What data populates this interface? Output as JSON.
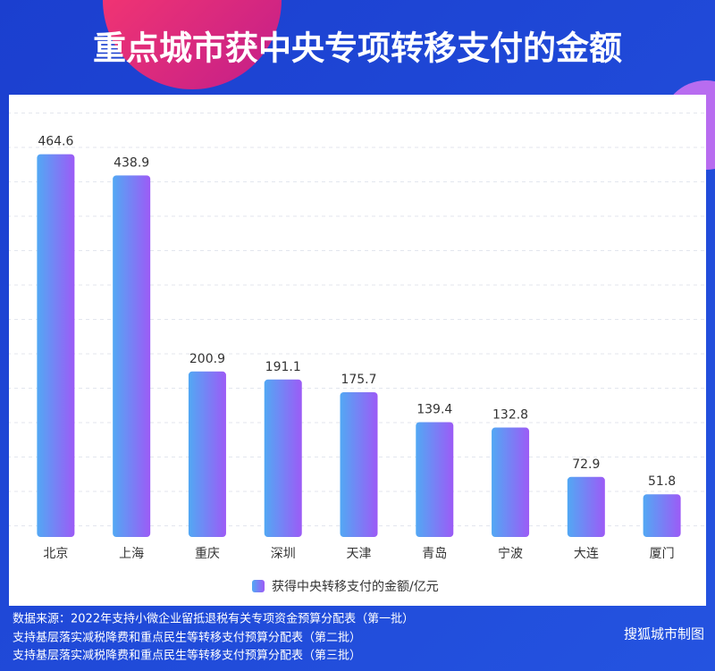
{
  "chart_data": {
    "type": "bar",
    "title": "重点城市获中央专项转移支付的金额",
    "categories": [
      "北京",
      "上海",
      "重庆",
      "深圳",
      "天津",
      "青岛",
      "宁波",
      "大连",
      "厦门"
    ],
    "series": [
      {
        "name": "获得中央转移支付的金额/亿元",
        "color": [
          "#52a8f4",
          "#9c5bf6"
        ],
        "values": [
          464.6,
          438.9,
          200.9,
          191.1,
          175.7,
          139.4,
          132.8,
          72.9,
          51.8
        ]
      }
    ],
    "ylim": [
      0,
      500
    ],
    "grid": true,
    "source": [
      "数据来源：2022年支持小微企业留抵退税有关专项资金预算分配表（第一批）",
      "支持基层落实减税降费和重点民生等转移支付预算分配表（第二批）",
      "支持基层落实减税降费和重点民生等转移支付预算分配表（第三批）"
    ],
    "credit": "搜狐城市制图"
  }
}
